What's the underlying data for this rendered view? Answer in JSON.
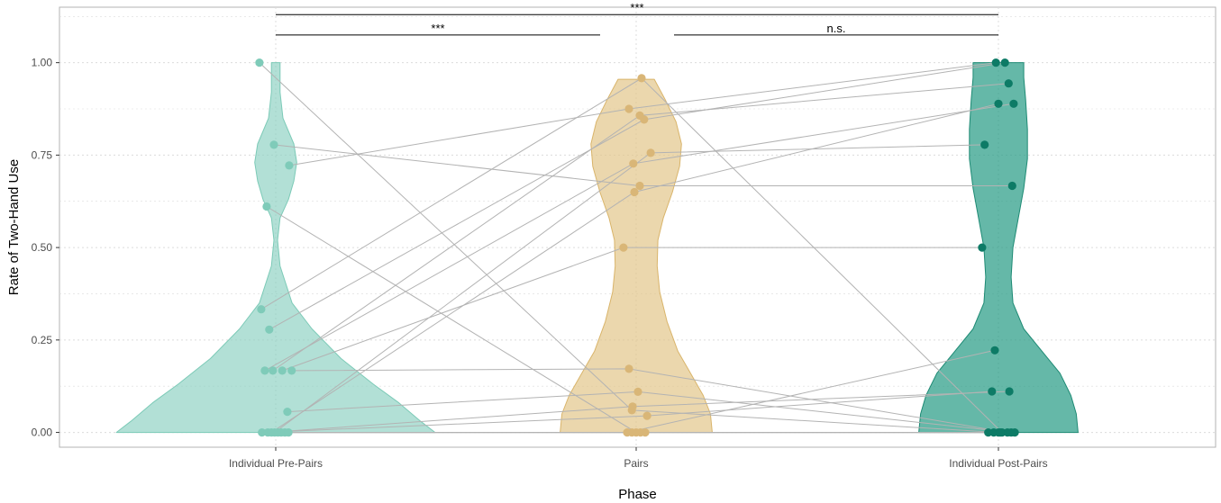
{
  "chart_data": {
    "type": "violin",
    "xlabel": "Phase",
    "ylabel": "Rate of Two-Hand Use",
    "categories": [
      "Individual Pre-Pairs",
      "Pairs",
      "Individual Post-Pairs"
    ],
    "ylim": [
      -0.04,
      1.15
    ],
    "yticks": [
      0.0,
      0.25,
      0.5,
      0.75,
      1.0
    ],
    "ytick_labels": [
      "0.00",
      "0.25",
      "0.50",
      "0.75",
      "1.00"
    ],
    "grid": true,
    "colors": {
      "Individual Pre-Pairs": "#8ed2c2",
      "Pairs": "#e3c68a",
      "Individual Post-Pairs": "#2a9d86",
      "point_pre": "#7fcbb9",
      "point_pairs": "#d9b677",
      "point_post": "#0d7b66",
      "connector": "#b3b3b3",
      "grid": "#dcdcdc"
    },
    "significance": [
      {
        "from": "Individual Pre-Pairs",
        "to": "Pairs",
        "label": "***",
        "y": 1.075
      },
      {
        "from": "Pairs",
        "to": "Individual Post-Pairs",
        "label": "n.s.",
        "y": 1.075
      },
      {
        "from": "Individual Pre-Pairs",
        "to": "Individual Post-Pairs",
        "label": "***",
        "y": 1.13
      }
    ],
    "violins": [
      {
        "name": "Individual Pre-Pairs",
        "profile": [
          [
            0.0,
            0.44
          ],
          [
            0.03,
            0.4
          ],
          [
            0.08,
            0.34
          ],
          [
            0.13,
            0.27
          ],
          [
            0.2,
            0.18
          ],
          [
            0.28,
            0.1
          ],
          [
            0.35,
            0.045
          ],
          [
            0.45,
            0.012
          ],
          [
            0.52,
            0.005
          ],
          [
            0.58,
            0.012
          ],
          [
            0.63,
            0.035
          ],
          [
            0.68,
            0.05
          ],
          [
            0.73,
            0.058
          ],
          [
            0.78,
            0.05
          ],
          [
            0.85,
            0.02
          ],
          [
            0.92,
            0.012
          ],
          [
            1.0,
            0.012
          ]
        ]
      },
      {
        "name": "Pairs",
        "profile": [
          [
            0.0,
            0.21
          ],
          [
            0.05,
            0.205
          ],
          [
            0.1,
            0.185
          ],
          [
            0.16,
            0.15
          ],
          [
            0.22,
            0.115
          ],
          [
            0.3,
            0.085
          ],
          [
            0.38,
            0.065
          ],
          [
            0.45,
            0.058
          ],
          [
            0.52,
            0.06
          ],
          [
            0.58,
            0.075
          ],
          [
            0.65,
            0.1
          ],
          [
            0.72,
            0.12
          ],
          [
            0.78,
            0.125
          ],
          [
            0.84,
            0.11
          ],
          [
            0.9,
            0.08
          ],
          [
            0.955,
            0.05
          ]
        ]
      },
      {
        "name": "Individual Post-Pairs",
        "profile": [
          [
            0.0,
            0.22
          ],
          [
            0.05,
            0.215
          ],
          [
            0.1,
            0.2
          ],
          [
            0.16,
            0.17
          ],
          [
            0.22,
            0.12
          ],
          [
            0.28,
            0.07
          ],
          [
            0.35,
            0.04
          ],
          [
            0.42,
            0.035
          ],
          [
            0.5,
            0.04
          ],
          [
            0.58,
            0.055
          ],
          [
            0.66,
            0.07
          ],
          [
            0.74,
            0.08
          ],
          [
            0.82,
            0.08
          ],
          [
            0.9,
            0.075
          ],
          [
            0.96,
            0.07
          ],
          [
            1.0,
            0.07
          ]
        ]
      }
    ],
    "subjects": [
      {
        "pre": 1.0,
        "pre_jitter": -0.045,
        "pairs": 0.06,
        "pairs_jitter": -0.012,
        "post": 0.0,
        "post_jitter": 0.0
      },
      {
        "pre": 0.778,
        "pre_jitter": -0.005,
        "pairs": 0.667,
        "pairs_jitter": 0.01,
        "post": 0.667,
        "post_jitter": 0.038
      },
      {
        "pre": 0.722,
        "pre_jitter": 0.037,
        "pairs": 0.875,
        "pairs_jitter": -0.02,
        "post": 1.0,
        "post_jitter": -0.007
      },
      {
        "pre": 0.611,
        "pre_jitter": -0.025,
        "pairs": 0.0,
        "pairs_jitter": 0.0,
        "post": 0.0,
        "post_jitter": -0.013
      },
      {
        "pre": 0.333,
        "pre_jitter": -0.04,
        "pairs": 0.958,
        "pairs_jitter": 0.015,
        "post": 0.0,
        "post_jitter": 0.01
      },
      {
        "pre": 0.278,
        "pre_jitter": -0.018,
        "pairs": 0.846,
        "pairs_jitter": 0.022,
        "post": 1.0,
        "post_jitter": 0.018
      },
      {
        "pre": 0.167,
        "pre_jitter": -0.03,
        "pairs": 0.727,
        "pairs_jitter": -0.008,
        "post": 0.889,
        "post_jitter": 0.042
      },
      {
        "pre": 0.167,
        "pre_jitter": -0.008,
        "pairs": 0.857,
        "pairs_jitter": 0.01,
        "post": 0.944,
        "post_jitter": 0.028
      },
      {
        "pre": 0.167,
        "pre_jitter": 0.018,
        "pairs": 0.5,
        "pairs_jitter": -0.035,
        "post": 0.5,
        "post_jitter": -0.045
      },
      {
        "pre": 0.167,
        "pre_jitter": 0.044,
        "pairs": 0.172,
        "pairs_jitter": -0.02,
        "post": 0.0,
        "post_jitter": 0.025
      },
      {
        "pre": 0.056,
        "pre_jitter": 0.032,
        "pairs": 0.11,
        "pairs_jitter": 0.005,
        "post": 0.0,
        "post_jitter": 0.035
      },
      {
        "pre": 0.0,
        "pre_jitter": -0.038,
        "pairs": 0.045,
        "pairs_jitter": 0.03,
        "post": 0.111,
        "post_jitter": -0.018
      },
      {
        "pre": 0.0,
        "pre_jitter": -0.022,
        "pairs": 0.07,
        "pairs_jitter": -0.01,
        "post": 0.111,
        "post_jitter": 0.03
      },
      {
        "pre": 0.0,
        "pre_jitter": -0.012,
        "pairs": 0.65,
        "pairs_jitter": -0.005,
        "post": 0.889,
        "post_jitter": 0.0
      },
      {
        "pre": 0.0,
        "pre_jitter": -0.003,
        "pairs": 0.756,
        "pairs_jitter": 0.04,
        "post": 0.778,
        "post_jitter": -0.038
      },
      {
        "pre": 0.0,
        "pre_jitter": 0.006,
        "pairs": 0.0,
        "pairs_jitter": -0.025,
        "post": 0.222,
        "post_jitter": -0.01
      },
      {
        "pre": 0.0,
        "pre_jitter": 0.015,
        "pairs": 0.0,
        "pairs_jitter": 0.012,
        "post": 0.0,
        "post_jitter": -0.028
      },
      {
        "pre": 0.0,
        "pre_jitter": 0.025,
        "pairs": 0.0,
        "pairs_jitter": 0.025,
        "post": 0.0,
        "post_jitter": 0.045
      },
      {
        "pre": 0.0,
        "pre_jitter": 0.035,
        "pairs": 0.0,
        "pairs_jitter": -0.012,
        "post": 0.0,
        "post_jitter": 0.005
      }
    ]
  }
}
